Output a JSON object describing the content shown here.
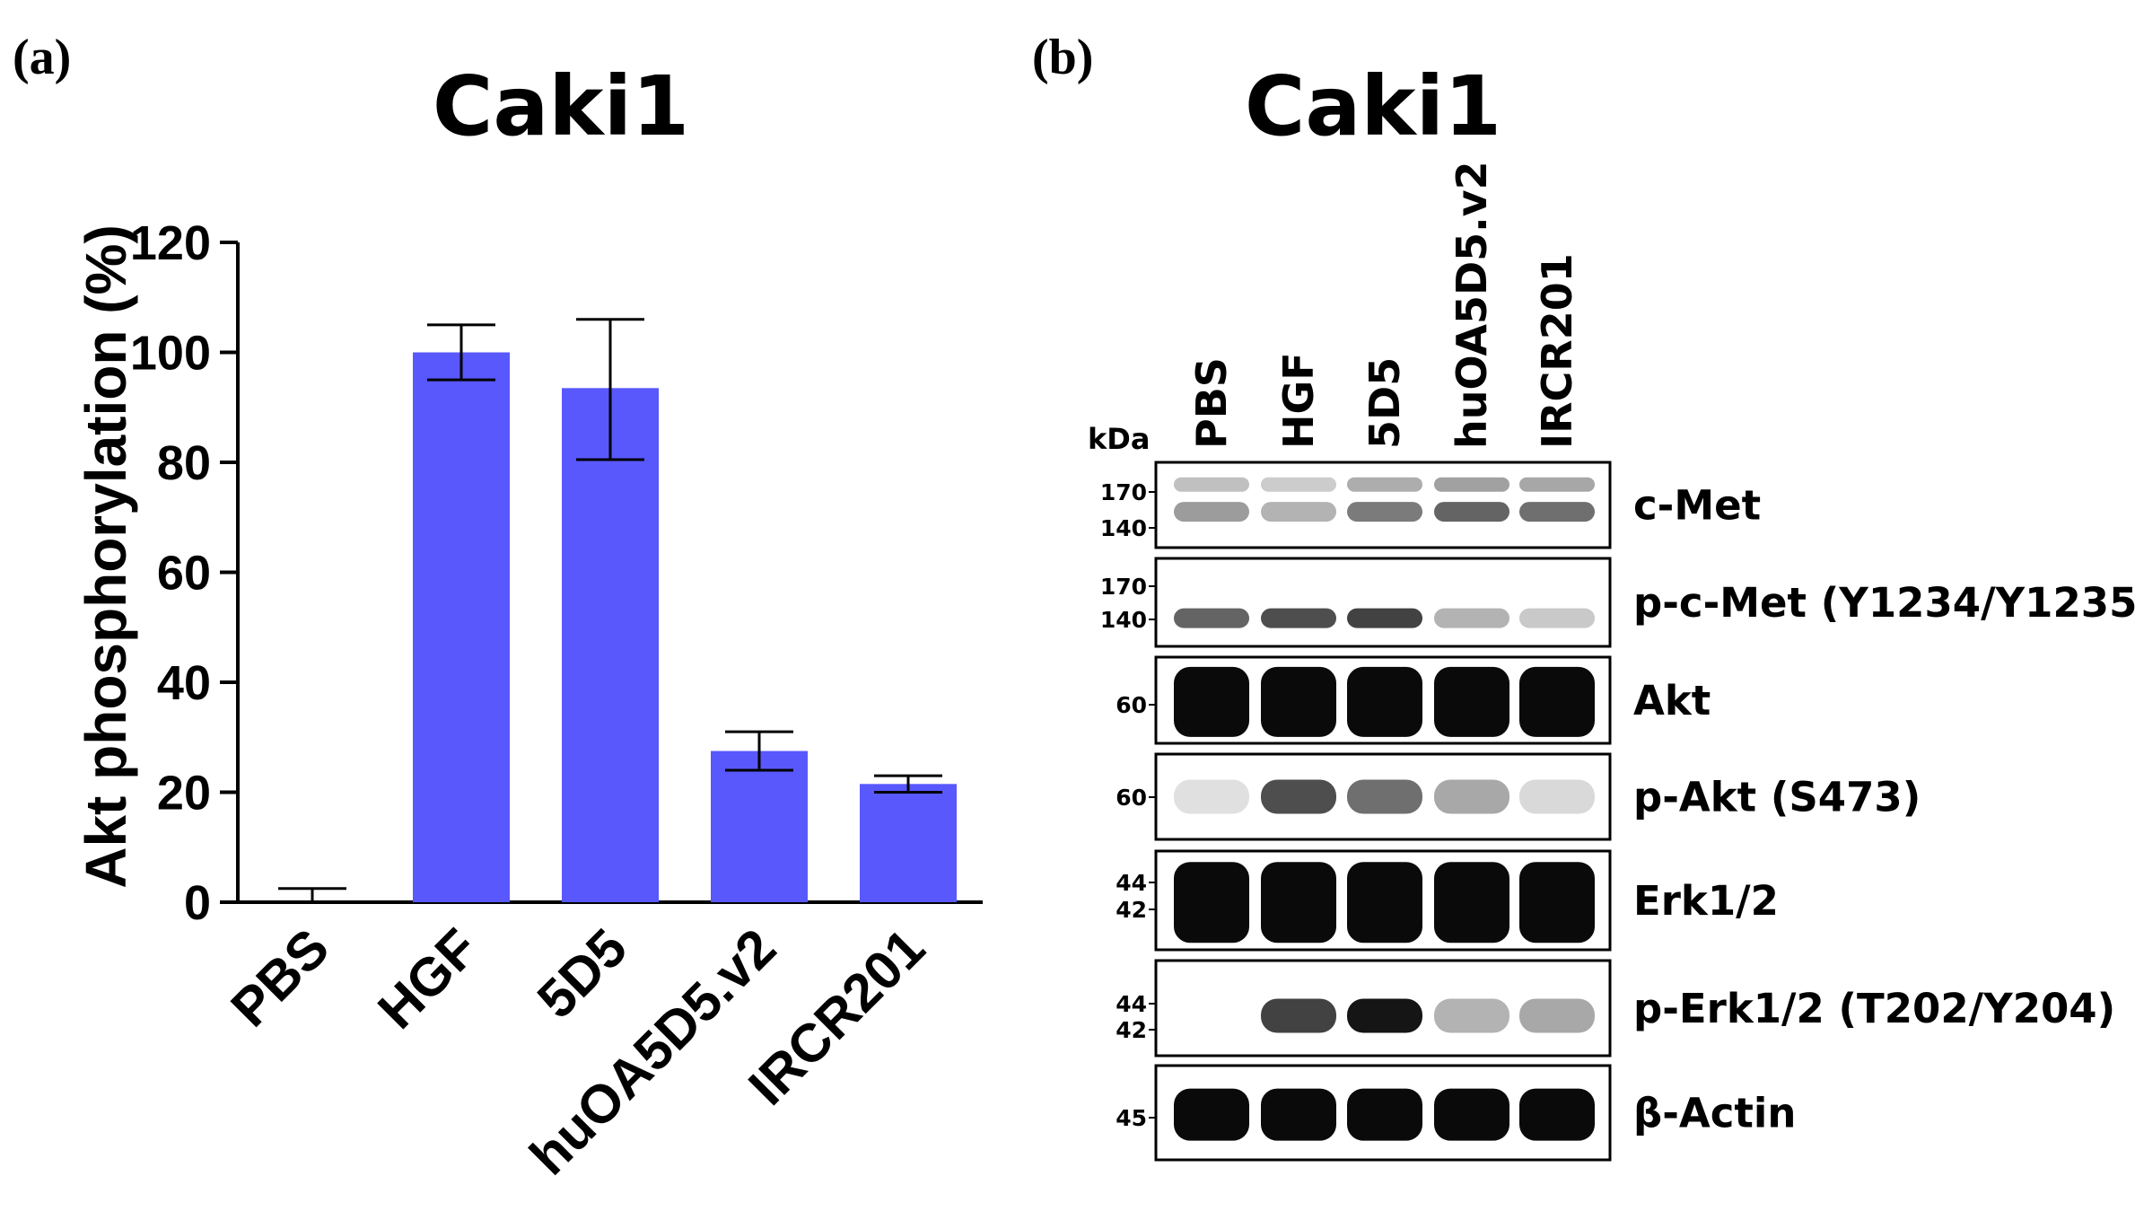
{
  "panels": {
    "a_label": "(a)",
    "b_label": "(b)"
  },
  "chart_data": {
    "type": "bar",
    "title": "Caki1",
    "xlabel": "",
    "ylabel": "Akt phosphorylation (%)",
    "categories": [
      "PBS",
      "HGF",
      "5D5",
      "huOA5D5.v2",
      "IRCR201"
    ],
    "values": [
      0,
      100,
      93.5,
      27.5,
      21.5
    ],
    "error_upper": [
      2.5,
      105,
      106,
      31,
      23
    ],
    "error_lower": [
      0,
      95,
      80.5,
      24,
      20
    ],
    "ylim": [
      0,
      120
    ],
    "yticks": [
      "0",
      "20",
      "40",
      "60",
      "80",
      "100",
      "120"
    ],
    "bar_color": "#5858fd",
    "grid": false
  },
  "western_blot": {
    "title": "Caki1",
    "kda_label": "kDa",
    "lanes": [
      "PBS",
      "HGF",
      "5D5",
      "huOA5D5.v2",
      "IRCR201"
    ],
    "blots": [
      {
        "protein": "c-Met",
        "markers": [
          "170",
          "140"
        ],
        "band_intensity": [
          0.35,
          0.25,
          0.5,
          0.6,
          0.55
        ]
      },
      {
        "protein": "p-c-Met (Y1234/Y1235)",
        "markers": [
          "170",
          "140"
        ],
        "band_intensity": [
          0.6,
          0.7,
          0.75,
          0.25,
          0.15
        ]
      },
      {
        "protein": "Akt",
        "markers": [
          "60"
        ],
        "band_intensity": [
          1.0,
          1.0,
          1.0,
          1.0,
          1.0
        ]
      },
      {
        "protein": "p-Akt (S473)",
        "markers": [
          "60"
        ],
        "band_intensity": [
          0.05,
          0.7,
          0.55,
          0.3,
          0.08
        ]
      },
      {
        "protein": "Erk1/2",
        "markers": [
          "44",
          "42"
        ],
        "band_intensity": [
          1.0,
          1.0,
          1.0,
          1.0,
          1.0
        ]
      },
      {
        "protein": "p-Erk1/2 (T202/Y204)",
        "markers": [
          "44",
          "42"
        ],
        "band_intensity": [
          0.0,
          0.75,
          0.95,
          0.25,
          0.3
        ]
      },
      {
        "protein": "β-Actin",
        "markers": [
          "45"
        ],
        "band_intensity": [
          1.0,
          1.0,
          1.0,
          1.0,
          1.0
        ]
      }
    ]
  }
}
